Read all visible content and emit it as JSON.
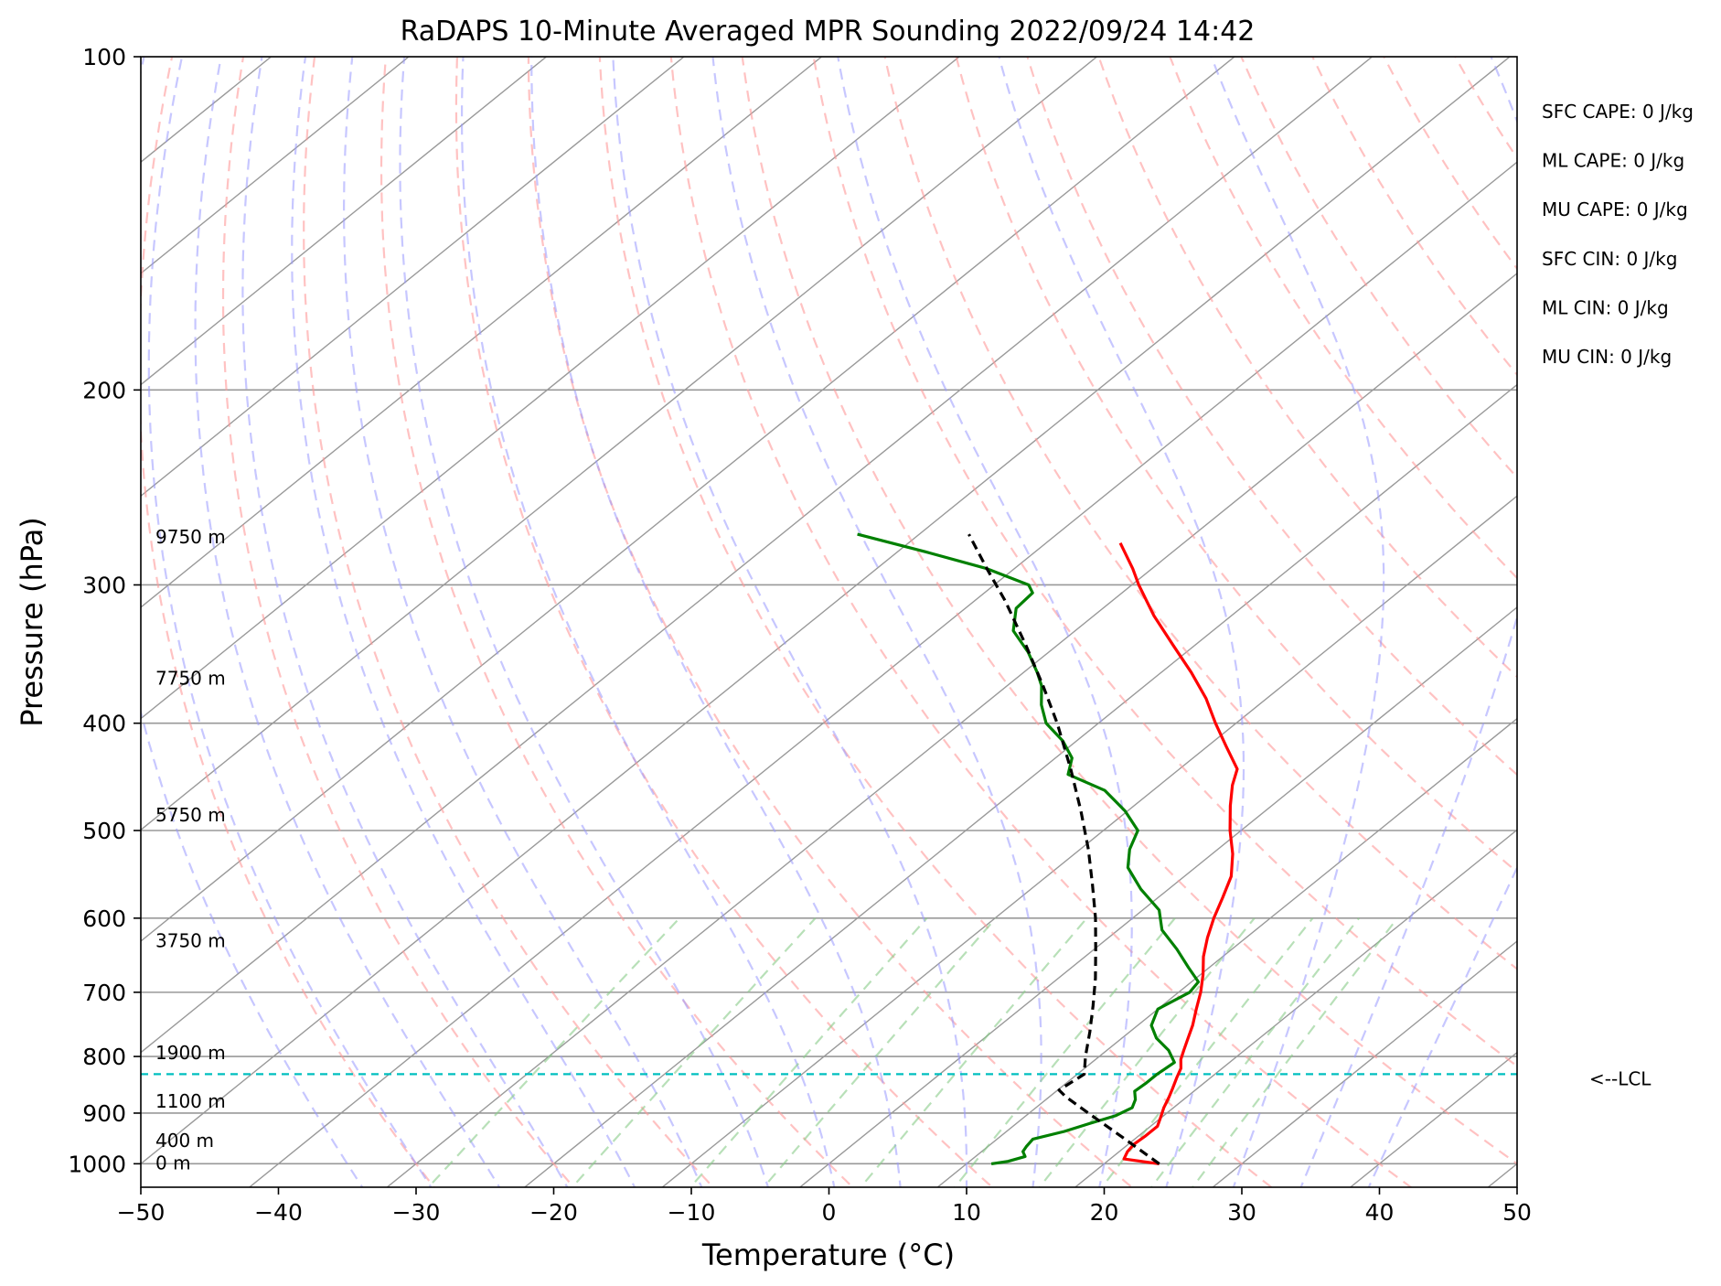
{
  "chart_data": {
    "type": "line",
    "title": "RaDAPS 10-Minute Averaged MPR Sounding 2022/09/24 14:42",
    "xlabel": "Temperature (°C)",
    "ylabel": "Pressure (hPa)",
    "xlim": [
      -50,
      50
    ],
    "ylim": [
      1050,
      100
    ],
    "y_scale": "log",
    "skew": "skew-T log-P",
    "x_ticks": [
      "−50",
      "−40",
      "−30",
      "−20",
      "−10",
      "0",
      "10",
      "20",
      "30",
      "40",
      "50"
    ],
    "y_ticks": [
      "100",
      "200",
      "300",
      "400",
      "500",
      "600",
      "700",
      "800",
      "900",
      "1000"
    ],
    "grid": true,
    "colors": {
      "temperature": "#ff0000",
      "dewpoint": "#008000",
      "parcel": "#000000",
      "lcl": "#00bfbf",
      "isotherm": "#999999",
      "dry_adiabat": "#ff9999",
      "moist_adiabat": "#9999ff",
      "mixing_ratio": "#88cc88"
    },
    "series": [
      {
        "name": "",
        "key": "temperature",
        "points": [
          [
            1000,
            24
          ],
          [
            990,
            21
          ],
          [
            975,
            20.6
          ],
          [
            960,
            20.4
          ],
          [
            945,
            20.5
          ],
          [
            925,
            20.5
          ],
          [
            910,
            20
          ],
          [
            890,
            19.3
          ],
          [
            870,
            18.7
          ],
          [
            855,
            18.2
          ],
          [
            835,
            17.5
          ],
          [
            820,
            17
          ],
          [
            805,
            16.2
          ],
          [
            790,
            15.6
          ],
          [
            775,
            15
          ],
          [
            750,
            14
          ],
          [
            725,
            12.8
          ],
          [
            700,
            11.6
          ],
          [
            675,
            10.2
          ],
          [
            650,
            8.6
          ],
          [
            625,
            7.2
          ],
          [
            600,
            5.9
          ],
          [
            575,
            4.7
          ],
          [
            550,
            3.4
          ],
          [
            525,
            1.5
          ],
          [
            500,
            -0.8
          ],
          [
            475,
            -3
          ],
          [
            455,
            -4.7
          ],
          [
            440,
            -5.8
          ],
          [
            420,
            -8.6
          ],
          [
            400,
            -11.5
          ],
          [
            380,
            -14.4
          ],
          [
            360,
            -17.8
          ],
          [
            340,
            -21.6
          ],
          [
            320,
            -25.6
          ],
          [
            300,
            -29.5
          ],
          [
            290,
            -31.4
          ],
          [
            275,
            -34.6
          ]
        ]
      },
      {
        "name": "",
        "key": "dewpoint",
        "points": [
          [
            1000,
            11.8
          ],
          [
            995,
            12.8
          ],
          [
            985,
            13.6
          ],
          [
            975,
            13
          ],
          [
            965,
            12.8
          ],
          [
            950,
            12.6
          ],
          [
            935,
            14.2
          ],
          [
            920,
            15.3
          ],
          [
            905,
            16.5
          ],
          [
            890,
            17
          ],
          [
            875,
            16.5
          ],
          [
            860,
            15.7
          ],
          [
            845,
            15.8
          ],
          [
            830,
            15.8
          ],
          [
            810,
            16
          ],
          [
            790,
            14.5
          ],
          [
            770,
            12.5
          ],
          [
            750,
            11
          ],
          [
            725,
            10
          ],
          [
            700,
            10.8
          ],
          [
            685,
            10.5
          ],
          [
            665,
            8.5
          ],
          [
            640,
            6
          ],
          [
            615,
            3.2
          ],
          [
            590,
            1.2
          ],
          [
            565,
            -2
          ],
          [
            540,
            -4.9
          ],
          [
            520,
            -6.4
          ],
          [
            500,
            -7.5
          ],
          [
            480,
            -10.2
          ],
          [
            460,
            -13.5
          ],
          [
            445,
            -17.6
          ],
          [
            430,
            -18.8
          ],
          [
            415,
            -21
          ],
          [
            400,
            -23.8
          ],
          [
            385,
            -25.8
          ],
          [
            370,
            -27.5
          ],
          [
            360,
            -29
          ],
          [
            345,
            -31.5
          ],
          [
            330,
            -34.5
          ],
          [
            315,
            -36.3
          ],
          [
            305,
            -36.5
          ],
          [
            300,
            -37.5
          ],
          [
            290,
            -42
          ],
          [
            280,
            -48
          ],
          [
            270,
            -54.5
          ]
        ]
      },
      {
        "name": "",
        "key": "parcel",
        "points": [
          [
            1000,
            24
          ],
          [
            950,
            19.3
          ],
          [
            900,
            14.3
          ],
          [
            870,
            11.2
          ],
          [
            858,
            10.1
          ],
          [
            830,
            10.5
          ],
          [
            800,
            9
          ],
          [
            760,
            7.1
          ],
          [
            720,
            5
          ],
          [
            680,
            2.7
          ],
          [
            640,
            0.1
          ],
          [
            600,
            -2.7
          ],
          [
            560,
            -5.9
          ],
          [
            520,
            -9.4
          ],
          [
            480,
            -13.4
          ],
          [
            440,
            -17.9
          ],
          [
            400,
            -23
          ],
          [
            370,
            -27.4
          ],
          [
            340,
            -32.3
          ],
          [
            310,
            -37.8
          ],
          [
            290,
            -42
          ],
          [
            270,
            -46.4
          ]
        ]
      }
    ],
    "lcl_pressure": 830,
    "lcl_label": "<--LCL",
    "height_labels": [
      "0 m",
      "400 m",
      "1100 m",
      "1900 m",
      "3750 m",
      "5750 m",
      "7750 m",
      "9750 m"
    ],
    "height_label_pressures": [
      1000,
      955,
      880,
      795,
      630,
      485,
      365,
      272
    ],
    "stats": [
      "SFC CAPE: 0 J/kg",
      "ML CAPE: 0 J/kg",
      "MU CAPE: 0 J/kg",
      "SFC CIN: 0 J/kg",
      "ML CIN: 0 J/kg",
      "MU CIN: 0 J/kg"
    ]
  }
}
